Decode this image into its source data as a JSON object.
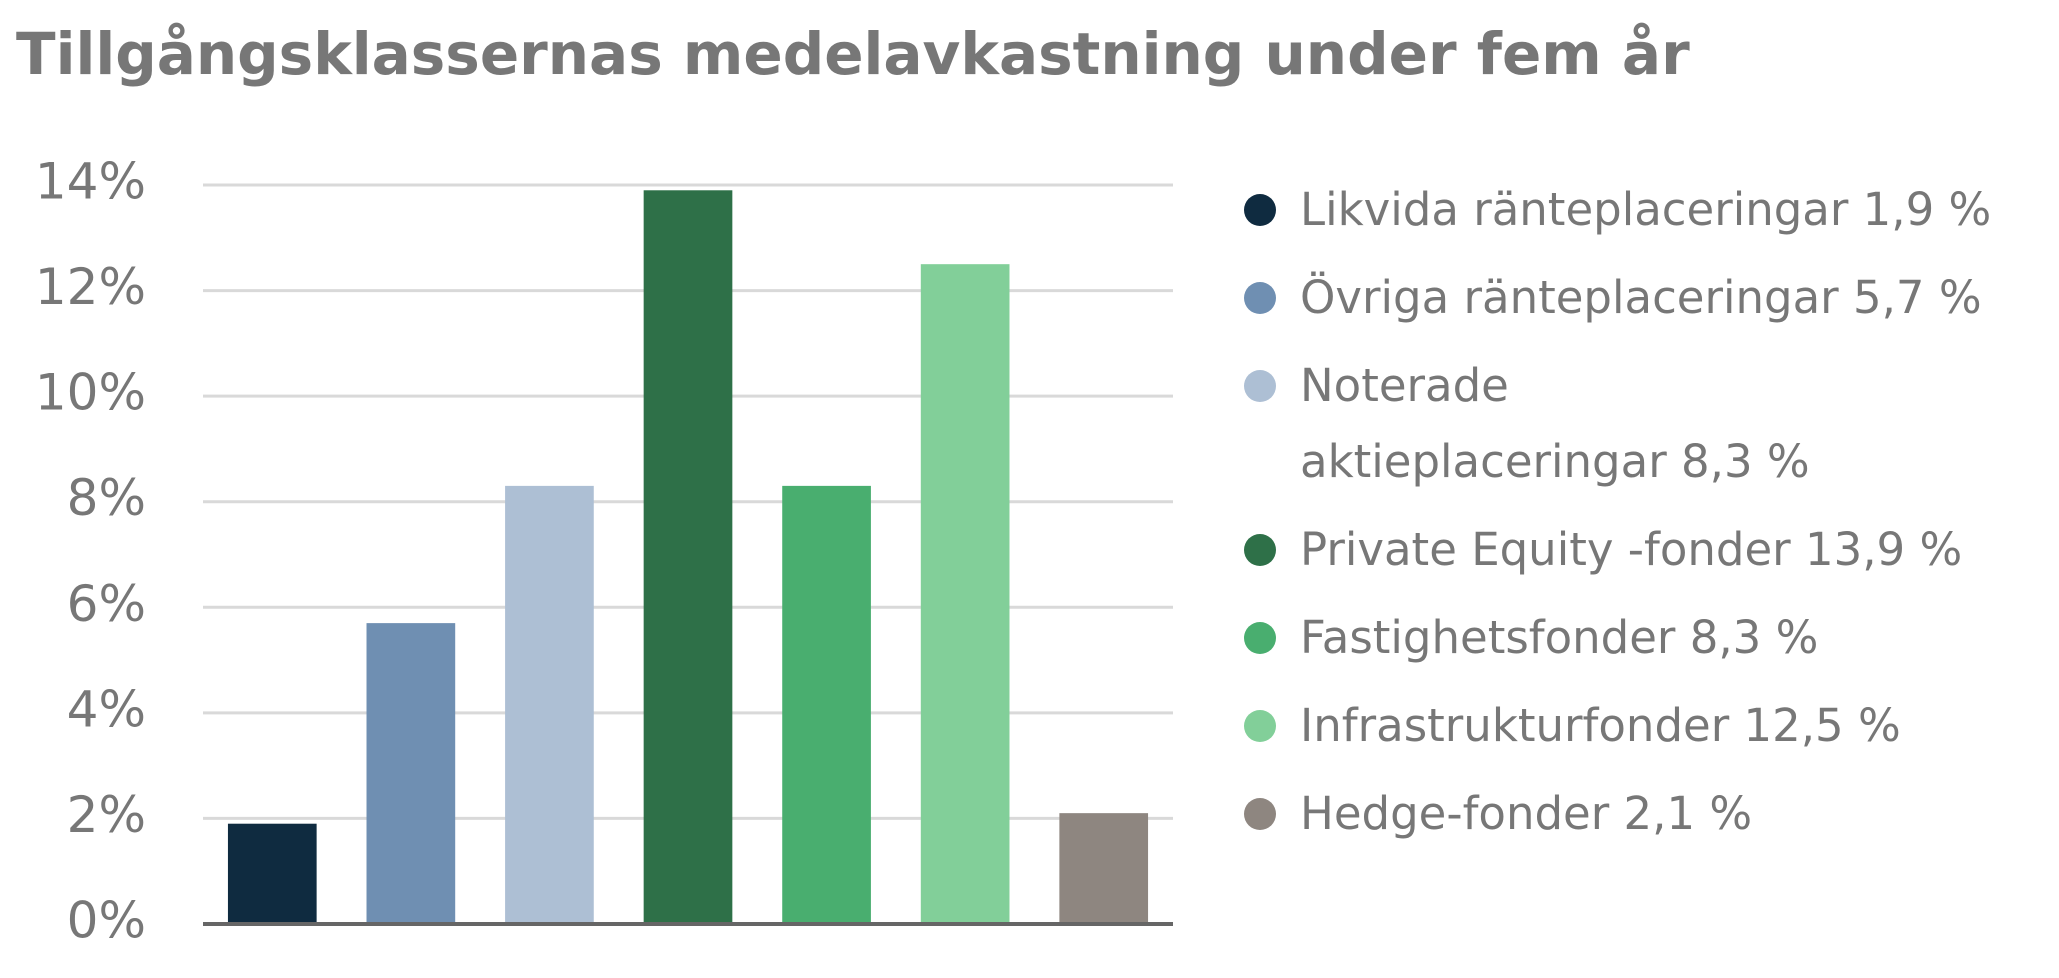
{
  "chart_data": {
    "type": "bar",
    "title": "Tillgångsklassernas medelavkastning under fem år",
    "categories": [
      "Likvida ränteplaceringar 1,9 %",
      "Övriga ränteplaceringar 5,7 %",
      "Noterade\naktieplaceringar 8,3 %",
      "Private Equity -fonder 13,9 %",
      "Fastighetsfonder 8,3 %",
      "Infrastrukturfonder 12,5 %",
      "Hedge-fonder 2,1 %"
    ],
    "values": [
      1.9,
      5.7,
      8.3,
      13.9,
      8.3,
      12.5,
      2.1
    ],
    "colors": [
      "#0f2b40",
      "#6f8fb2",
      "#adbfd4",
      "#2e7048",
      "#49ae6f",
      "#82cf99",
      "#8e8680"
    ],
    "ylim": [
      0,
      14
    ],
    "yticks": [
      {
        "value": 0,
        "label": "0%"
      },
      {
        "value": 2,
        "label": "2%"
      },
      {
        "value": 4,
        "label": "4%"
      },
      {
        "value": 6,
        "label": "6%"
      },
      {
        "value": 8,
        "label": "8%"
      },
      {
        "value": 10,
        "label": "10%"
      },
      {
        "value": 12,
        "label": "12%"
      },
      {
        "value": 14,
        "label": "14%"
      }
    ],
    "grid": true,
    "legend": "right"
  }
}
